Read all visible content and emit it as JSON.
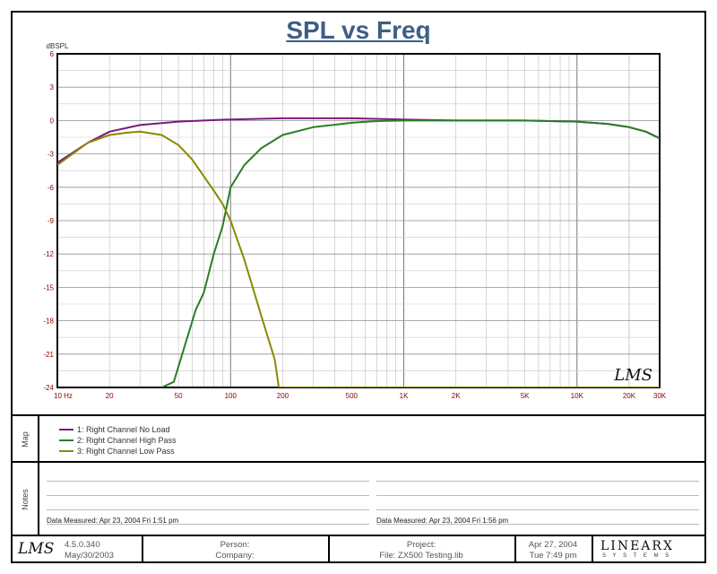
{
  "chart_data": {
    "type": "line",
    "title": "SPL vs Freq",
    "ylabel": "dBSPL",
    "xscale": "log",
    "xlim": [
      10,
      30000
    ],
    "ylim": [
      -24,
      6
    ],
    "grid": true,
    "x_tick_labels": [
      {
        "v": 10,
        "label": "10  Hz"
      },
      {
        "v": 20,
        "label": "20"
      },
      {
        "v": 50,
        "label": "50"
      },
      {
        "v": 100,
        "label": "100"
      },
      {
        "v": 200,
        "label": "200"
      },
      {
        "v": 500,
        "label": "500"
      },
      {
        "v": 1000,
        "label": "1K"
      },
      {
        "v": 2000,
        "label": "2K"
      },
      {
        "v": 5000,
        "label": "5K"
      },
      {
        "v": 10000,
        "label": "10K"
      },
      {
        "v": 20000,
        "label": "20K"
      },
      {
        "v": 30000,
        "label": "30K"
      }
    ],
    "y_tick_labels": [
      "6",
      "3",
      "0",
      "-3",
      "-6",
      "-9",
      "-12",
      "-15",
      "-18",
      "-21",
      "-24"
    ],
    "y_ticks": [
      6,
      3,
      0,
      -3,
      -6,
      -9,
      -12,
      -15,
      -18,
      -21,
      -24
    ],
    "series": [
      {
        "name": "1: Right Channel No Load",
        "color": "#7b1a7b",
        "x": [
          10,
          15,
          20,
          30,
          50,
          70,
          100,
          200,
          500,
          1000,
          2000,
          5000,
          10000,
          15000,
          20000,
          25000,
          30000
        ],
        "y": [
          -3.8,
          -2.0,
          -1.0,
          -0.4,
          -0.1,
          0.0,
          0.1,
          0.2,
          0.2,
          0.1,
          0.0,
          0.0,
          -0.1,
          -0.3,
          -0.6,
          -1.0,
          -1.6
        ]
      },
      {
        "name": "2: Right Channel High Pass",
        "color": "#2a7d2a",
        "x": [
          40,
          47,
          55,
          63,
          70,
          80,
          90,
          100,
          120,
          150,
          200,
          300,
          500,
          700,
          1000,
          2000,
          5000,
          10000,
          15000,
          20000,
          25000,
          30000
        ],
        "y": [
          -24,
          -23.5,
          -20,
          -17,
          -15.5,
          -12,
          -9.5,
          -6,
          -4,
          -2.5,
          -1.3,
          -0.6,
          -0.2,
          -0.05,
          0,
          0,
          0,
          -0.1,
          -0.3,
          -0.6,
          -1.0,
          -1.6
        ]
      },
      {
        "name": "3: Right Channel Low Pass",
        "color": "#8a8a00",
        "x": [
          10,
          15,
          20,
          25,
          30,
          40,
          50,
          60,
          70,
          80,
          90,
          100,
          120,
          150,
          180,
          190,
          200,
          1000,
          30000
        ],
        "y": [
          -4.0,
          -2.0,
          -1.3,
          -1.1,
          -1.0,
          -1.3,
          -2.2,
          -3.5,
          -5,
          -6.3,
          -7.5,
          -9,
          -12.5,
          -17.5,
          -21.5,
          -24,
          -24,
          -24,
          -24
        ]
      }
    ]
  },
  "legend_items": [
    "1: Right Channel No Load",
    "2: Right Channel High Pass",
    "3: Right Channel Low Pass"
  ],
  "labels": {
    "map": "Map",
    "notes": "Notes"
  },
  "notes": {
    "measured_1": "Data Measured: Apr 23, 2004  Fri  1:51 pm",
    "measured_2": "Data Measured: Apr 23, 2004  Fri  1:56 pm"
  },
  "footer": {
    "logo": "LMS",
    "version": "4.5.0.340",
    "version_date": "May/30/2003",
    "person_label": "Person:",
    "company_label": "Company:",
    "project_label": "Project:",
    "file_label": "File: ZX500 Testing.lib",
    "date": "Apr 27, 2004",
    "time": "Tue  7:49 pm",
    "brand": "LINEARX",
    "brand_sub": "S Y S T E M S"
  },
  "watermark": "LMS",
  "colors": {
    "title": "#3d5f85",
    "grid": "#a0a0a0",
    "tick_y": "#8b0000",
    "tick_x": "#8b0000"
  }
}
